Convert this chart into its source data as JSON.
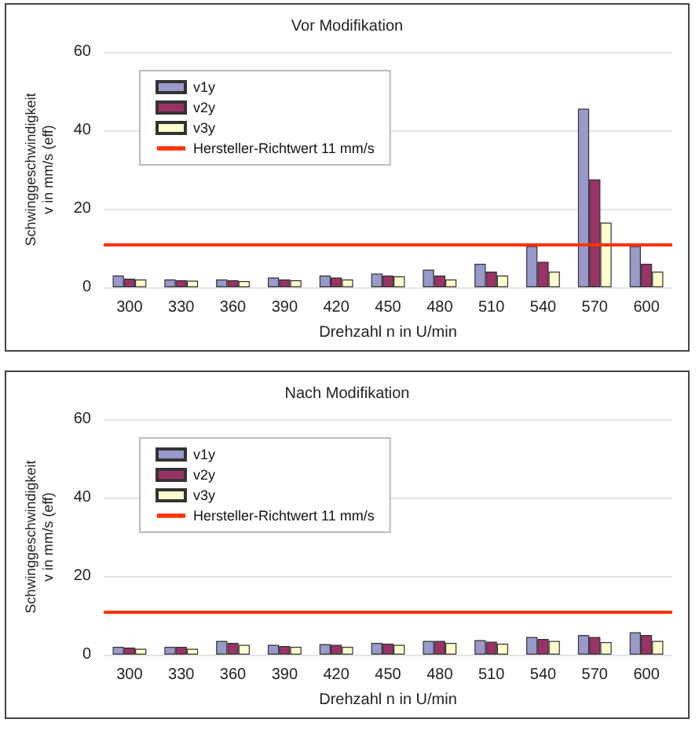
{
  "chart_data": [
    {
      "type": "bar",
      "title": "Vor Modifikation",
      "xlabel": "Drehzahl n in U/min",
      "ylabel": "Schwinggeschwindigkeit\nv in mm/s (eff)",
      "categories": [
        "300",
        "330",
        "360",
        "390",
        "420",
        "450",
        "480",
        "510",
        "540",
        "570",
        "600"
      ],
      "series": [
        {
          "name": "v1y",
          "color": "#9999cc",
          "values": [
            3,
            2,
            2,
            2.5,
            3,
            3.5,
            4.5,
            6,
            10.5,
            45.5,
            10.5
          ]
        },
        {
          "name": "v2y",
          "color": "#993366",
          "values": [
            2.2,
            1.8,
            1.8,
            2,
            2.5,
            3,
            3,
            4,
            6.5,
            27.5,
            6
          ]
        },
        {
          "name": "v3y",
          "color": "#ffffcc",
          "values": [
            2,
            1.7,
            1.6,
            1.8,
            2,
            2.8,
            2,
            3,
            4,
            16.5,
            4
          ]
        }
      ],
      "ylim": [
        0,
        60
      ],
      "yticks": [
        0,
        20,
        40,
        60
      ],
      "grid": "y",
      "legend": "top left",
      "ref_lines": [
        {
          "axis": "y",
          "value": 11,
          "label": "Hersteller-Richtwert 11 mm/s",
          "color": "#ff3300"
        }
      ]
    },
    {
      "type": "bar",
      "title": "Nach Modifikation",
      "xlabel": "Drehzahl n in U/min",
      "ylabel": "Schwinggeschwindigkeit\nv in mm/s (eff)",
      "categories": [
        "300",
        "330",
        "360",
        "390",
        "420",
        "450",
        "480",
        "510",
        "540",
        "570",
        "600"
      ],
      "series": [
        {
          "name": "v1y",
          "color": "#9999cc",
          "values": [
            2,
            2,
            3.5,
            2.5,
            2.7,
            3,
            3.5,
            3.7,
            4.5,
            5,
            5.7
          ]
        },
        {
          "name": "v2y",
          "color": "#993366",
          "values": [
            1.8,
            2,
            3,
            2.2,
            2.5,
            2.8,
            3.5,
            3.3,
            4,
            4.5,
            5
          ]
        },
        {
          "name": "v3y",
          "color": "#ffffcc",
          "values": [
            1.5,
            1.5,
            2.5,
            2,
            2,
            2.5,
            3,
            2.8,
            3.5,
            3.2,
            3.5
          ]
        }
      ],
      "ylim": [
        0,
        60
      ],
      "yticks": [
        0,
        20,
        40,
        60
      ],
      "grid": "y",
      "legend": "top left",
      "ref_lines": [
        {
          "axis": "y",
          "value": 11,
          "label": "Hersteller-Richtwert 11 mm/s",
          "color": "#ff3300"
        }
      ]
    }
  ]
}
